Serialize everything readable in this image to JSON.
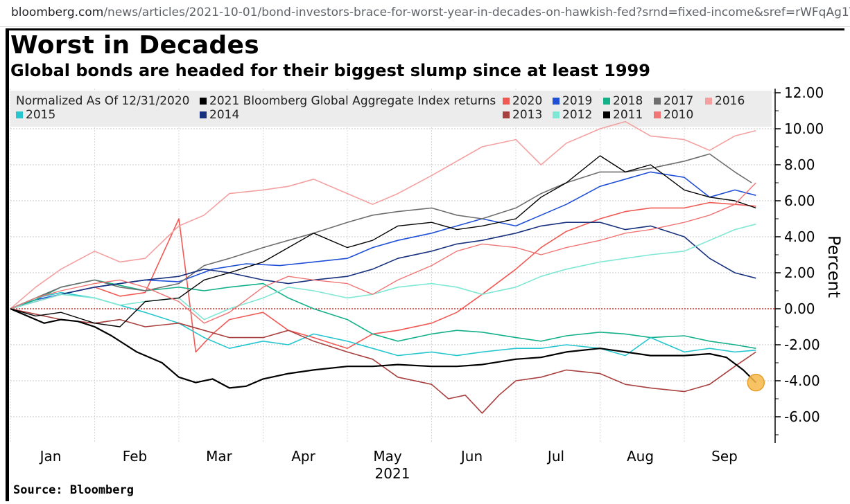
{
  "browser": {
    "url_host": "bloomberg.com",
    "url_path": "/news/articles/2021-10-01/bond-investors-brace-for-worst-year-in-decades-on-hawkish-fed?srnd=fixed-income&sref=rWFqAg1Y"
  },
  "header": {
    "title": "Worst in Decades",
    "subtitle": "Global bonds are headed for their biggest slump since at least 1999"
  },
  "footer": {
    "source": "Source: Bloomberg"
  },
  "chart_data": {
    "type": "line",
    "normalization_note": "Normalized As Of 12/31/2020",
    "ylabel": "Percent",
    "year_label": "2021",
    "ylim": [
      -7.0,
      12.5
    ],
    "yticks": [
      -6.0,
      -4.0,
      -2.0,
      0.0,
      2.0,
      4.0,
      6.0,
      8.0,
      10.0,
      12.0
    ],
    "ytick_labels": [
      "-6.00",
      "-4.00",
      "-2.00",
      "0.00",
      "2.00",
      "4.00",
      "6.00",
      "8.00",
      "10.00",
      "12.00"
    ],
    "xlim": [
      0,
      8.9
    ],
    "x_ticks": [
      0,
      1,
      2,
      3,
      4,
      5,
      6,
      7,
      8
    ],
    "x_tick_labels": [
      "Jan",
      "Feb",
      "Mar",
      "Apr",
      "May",
      "Jun",
      "Jul",
      "Aug",
      "Sep"
    ],
    "x_unit": "months elapsed in 2021 (0 = start of Jan)",
    "zero_line": true,
    "grid": true,
    "legend_position": "top",
    "highlight_point": {
      "series": "2021 Bloomberg Global Aggregate Index returns",
      "x": 8.85,
      "y": -4.1
    },
    "series": [
      {
        "name": "2021 Bloomberg Global Aggregate Index returns",
        "color": "#000000",
        "width": 2.2,
        "x": [
          0,
          0.2,
          0.4,
          0.6,
          0.8,
          1.0,
          1.2,
          1.5,
          1.8,
          2.0,
          2.2,
          2.4,
          2.6,
          2.8,
          3.0,
          3.3,
          3.6,
          4.0,
          4.3,
          4.6,
          5.0,
          5.3,
          5.6,
          6.0,
          6.3,
          6.6,
          7.0,
          7.3,
          7.6,
          8.0,
          8.3,
          8.5,
          8.7,
          8.85
        ],
        "y": [
          0,
          -0.4,
          -0.8,
          -0.6,
          -0.7,
          -1.0,
          -1.5,
          -2.4,
          -3.0,
          -3.8,
          -4.1,
          -3.9,
          -4.4,
          -4.3,
          -3.9,
          -3.6,
          -3.4,
          -3.2,
          -3.2,
          -3.1,
          -3.2,
          -3.2,
          -3.1,
          -2.8,
          -2.7,
          -2.4,
          -2.2,
          -2.4,
          -2.6,
          -2.6,
          -2.5,
          -2.7,
          -3.4,
          -4.1
        ]
      },
      {
        "name": "2020",
        "color": "#f05a55",
        "width": 1.6,
        "x": [
          0,
          0.3,
          0.6,
          1.0,
          1.3,
          1.6,
          2.0,
          2.1,
          2.2,
          2.4,
          2.6,
          2.8,
          3.0,
          3.3,
          3.6,
          4.0,
          4.3,
          4.6,
          5.0,
          5.3,
          5.6,
          6.0,
          6.3,
          6.6,
          7.0,
          7.3,
          7.6,
          8.0,
          8.3,
          8.6,
          8.85
        ],
        "y": [
          0,
          0.4,
          0.8,
          1.2,
          0.7,
          0.9,
          5.0,
          1.4,
          -2.4,
          -1.4,
          -0.6,
          -0.4,
          -0.2,
          -1.2,
          -1.6,
          -2.2,
          -1.4,
          -1.2,
          -0.8,
          -0.2,
          0.8,
          2.2,
          3.4,
          4.3,
          5.0,
          5.4,
          5.6,
          5.6,
          5.9,
          5.8,
          5.7
        ]
      },
      {
        "name": "2019",
        "color": "#1f4fd6",
        "width": 1.6,
        "x": [
          0,
          0.3,
          0.6,
          1.0,
          1.3,
          1.6,
          2.0,
          2.4,
          2.8,
          3.2,
          3.6,
          4.0,
          4.3,
          4.6,
          5.0,
          5.3,
          5.6,
          6.0,
          6.3,
          6.6,
          7.0,
          7.3,
          7.6,
          8.0,
          8.3,
          8.6,
          8.85
        ],
        "y": [
          0,
          0.5,
          0.8,
          1.2,
          1.4,
          1.6,
          1.5,
          2.2,
          2.5,
          2.4,
          2.6,
          2.8,
          3.4,
          3.8,
          4.2,
          4.6,
          5.0,
          4.6,
          5.2,
          5.8,
          6.8,
          7.2,
          7.6,
          7.3,
          6.2,
          6.6,
          6.3
        ]
      },
      {
        "name": "2018",
        "color": "#13b089",
        "width": 1.6,
        "x": [
          0,
          0.3,
          0.6,
          1.0,
          1.3,
          1.6,
          2.0,
          2.3,
          2.6,
          3.0,
          3.3,
          3.6,
          4.0,
          4.3,
          4.6,
          5.0,
          5.3,
          5.6,
          6.0,
          6.3,
          6.6,
          7.0,
          7.3,
          7.6,
          8.0,
          8.3,
          8.6,
          8.85
        ],
        "y": [
          0,
          0.5,
          1.2,
          1.6,
          1.3,
          1.0,
          1.2,
          1.0,
          1.2,
          1.4,
          0.6,
          0.0,
          -0.6,
          -1.4,
          -1.8,
          -1.4,
          -1.2,
          -1.3,
          -1.6,
          -1.8,
          -1.5,
          -1.3,
          -1.4,
          -1.6,
          -1.5,
          -1.8,
          -2.0,
          -2.2
        ]
      },
      {
        "name": "2017",
        "color": "#6e6e6e",
        "width": 1.6,
        "x": [
          0,
          0.3,
          0.6,
          1.0,
          1.3,
          1.6,
          2.0,
          2.3,
          2.6,
          3.0,
          3.3,
          3.6,
          4.0,
          4.3,
          4.6,
          5.0,
          5.3,
          5.6,
          6.0,
          6.3,
          6.6,
          7.0,
          7.3,
          7.6,
          8.0,
          8.3,
          8.6,
          8.8
        ],
        "y": [
          0,
          0.6,
          1.2,
          1.6,
          1.2,
          1.0,
          1.4,
          2.4,
          2.8,
          3.4,
          3.8,
          4.2,
          4.8,
          5.2,
          5.4,
          5.6,
          5.2,
          5.0,
          5.6,
          6.4,
          7.0,
          7.6,
          7.6,
          7.8,
          8.2,
          8.6,
          7.6,
          7.0
        ]
      },
      {
        "name": "2016",
        "color": "#f4a0a0",
        "width": 1.6,
        "x": [
          0,
          0.3,
          0.6,
          1.0,
          1.3,
          1.6,
          2.0,
          2.3,
          2.6,
          3.0,
          3.3,
          3.6,
          4.0,
          4.3,
          4.6,
          5.0,
          5.3,
          5.6,
          6.0,
          6.3,
          6.6,
          7.0,
          7.3,
          7.6,
          8.0,
          8.3,
          8.6,
          8.85
        ],
        "y": [
          0,
          1.2,
          2.2,
          3.2,
          2.6,
          2.8,
          4.6,
          5.2,
          6.4,
          6.6,
          6.8,
          7.2,
          6.4,
          5.8,
          6.4,
          7.4,
          8.2,
          9.0,
          9.4,
          8.0,
          9.2,
          10.0,
          10.4,
          9.6,
          9.4,
          8.8,
          9.6,
          9.9
        ]
      },
      {
        "name": "2015",
        "color": "#26c6cf",
        "width": 1.6,
        "x": [
          0,
          0.3,
          0.6,
          1.0,
          1.3,
          1.6,
          2.0,
          2.3,
          2.6,
          3.0,
          3.3,
          3.6,
          4.0,
          4.3,
          4.6,
          5.0,
          5.3,
          5.6,
          6.0,
          6.3,
          6.6,
          7.0,
          7.3,
          7.6,
          8.0,
          8.3,
          8.6,
          8.85
        ],
        "y": [
          0,
          0.6,
          0.9,
          0.6,
          0.2,
          -0.2,
          -0.8,
          -1.6,
          -2.2,
          -1.8,
          -2.0,
          -1.4,
          -1.8,
          -2.2,
          -2.6,
          -2.4,
          -2.6,
          -2.4,
          -2.2,
          -2.2,
          -2.0,
          -2.2,
          -2.6,
          -1.6,
          -2.4,
          -2.2,
          -2.4,
          -2.3
        ]
      },
      {
        "name": "2014",
        "color": "#17317e",
        "width": 1.6,
        "x": [
          0,
          0.3,
          0.6,
          1.0,
          1.3,
          1.6,
          2.0,
          2.3,
          2.6,
          3.0,
          3.3,
          3.6,
          4.0,
          4.3,
          4.6,
          5.0,
          5.3,
          5.6,
          6.0,
          6.3,
          6.6,
          7.0,
          7.3,
          7.6,
          8.0,
          8.3,
          8.6,
          8.85
        ],
        "y": [
          0,
          0.4,
          0.8,
          1.2,
          1.4,
          1.6,
          1.8,
          2.2,
          2.0,
          1.6,
          1.4,
          1.6,
          1.8,
          2.2,
          2.8,
          3.2,
          3.6,
          3.8,
          4.2,
          4.6,
          4.8,
          4.8,
          4.4,
          4.6,
          4.0,
          2.8,
          2.0,
          1.7
        ]
      },
      {
        "name": "2013",
        "color": "#a8403f",
        "width": 1.6,
        "x": [
          0,
          0.3,
          0.6,
          1.0,
          1.3,
          1.6,
          2.0,
          2.3,
          2.6,
          3.0,
          3.3,
          3.6,
          4.0,
          4.3,
          4.6,
          5.0,
          5.2,
          5.4,
          5.6,
          5.8,
          6.0,
          6.3,
          6.6,
          7.0,
          7.3,
          7.6,
          8.0,
          8.3,
          8.6,
          8.85
        ],
        "y": [
          0,
          -0.3,
          -0.6,
          -0.8,
          -0.6,
          -1.0,
          -0.8,
          -1.2,
          -1.6,
          -1.6,
          -1.2,
          -1.8,
          -2.4,
          -2.8,
          -3.8,
          -4.2,
          -5.0,
          -4.8,
          -5.8,
          -4.8,
          -4.0,
          -3.8,
          -3.4,
          -3.6,
          -4.2,
          -4.4,
          -4.6,
          -4.2,
          -3.2,
          -2.4
        ]
      },
      {
        "name": "2012",
        "color": "#7fe8d4",
        "width": 1.6,
        "x": [
          0,
          0.3,
          0.6,
          1.0,
          1.3,
          1.6,
          2.0,
          2.3,
          2.6,
          3.0,
          3.3,
          3.6,
          4.0,
          4.3,
          4.6,
          5.0,
          5.3,
          5.6,
          6.0,
          6.3,
          6.6,
          7.0,
          7.3,
          7.6,
          8.0,
          8.3,
          8.6,
          8.85
        ],
        "y": [
          0,
          0.4,
          0.8,
          0.6,
          0.2,
          0.4,
          0.6,
          -0.6,
          0.0,
          0.6,
          1.2,
          1.0,
          0.6,
          0.8,
          1.2,
          1.4,
          1.2,
          0.8,
          1.2,
          1.8,
          2.2,
          2.6,
          2.8,
          3.0,
          3.2,
          3.8,
          4.4,
          4.7
        ]
      },
      {
        "name": "2011",
        "color": "#000000",
        "width": 1.4,
        "x": [
          0,
          0.3,
          0.6,
          1.0,
          1.3,
          1.6,
          2.0,
          2.3,
          2.6,
          3.0,
          3.3,
          3.6,
          4.0,
          4.3,
          4.6,
          5.0,
          5.3,
          5.6,
          6.0,
          6.3,
          6.6,
          7.0,
          7.3,
          7.6,
          8.0,
          8.3,
          8.6,
          8.85
        ],
        "y": [
          0,
          -0.4,
          -0.2,
          -0.8,
          -1.0,
          0.4,
          0.6,
          1.6,
          2.0,
          2.6,
          3.4,
          4.2,
          3.4,
          3.8,
          4.6,
          4.8,
          4.4,
          4.6,
          5.0,
          6.2,
          7.0,
          8.5,
          7.6,
          8.0,
          6.6,
          6.2,
          6.0,
          5.6
        ]
      },
      {
        "name": "2010",
        "color": "#f07575",
        "width": 1.4,
        "x": [
          0,
          0.3,
          0.6,
          1.0,
          1.3,
          1.6,
          2.0,
          2.3,
          2.6,
          3.0,
          3.3,
          3.6,
          4.0,
          4.3,
          4.6,
          5.0,
          5.3,
          5.6,
          6.0,
          6.3,
          6.6,
          7.0,
          7.3,
          7.6,
          8.0,
          8.3,
          8.6,
          8.85
        ],
        "y": [
          0,
          0.6,
          1.0,
          1.4,
          1.6,
          1.2,
          0.4,
          -0.8,
          -0.2,
          1.2,
          1.8,
          1.6,
          1.4,
          0.8,
          1.6,
          2.4,
          3.2,
          3.6,
          3.4,
          3.0,
          3.4,
          3.8,
          4.2,
          4.4,
          4.8,
          5.2,
          5.8,
          7.0
        ]
      }
    ]
  }
}
